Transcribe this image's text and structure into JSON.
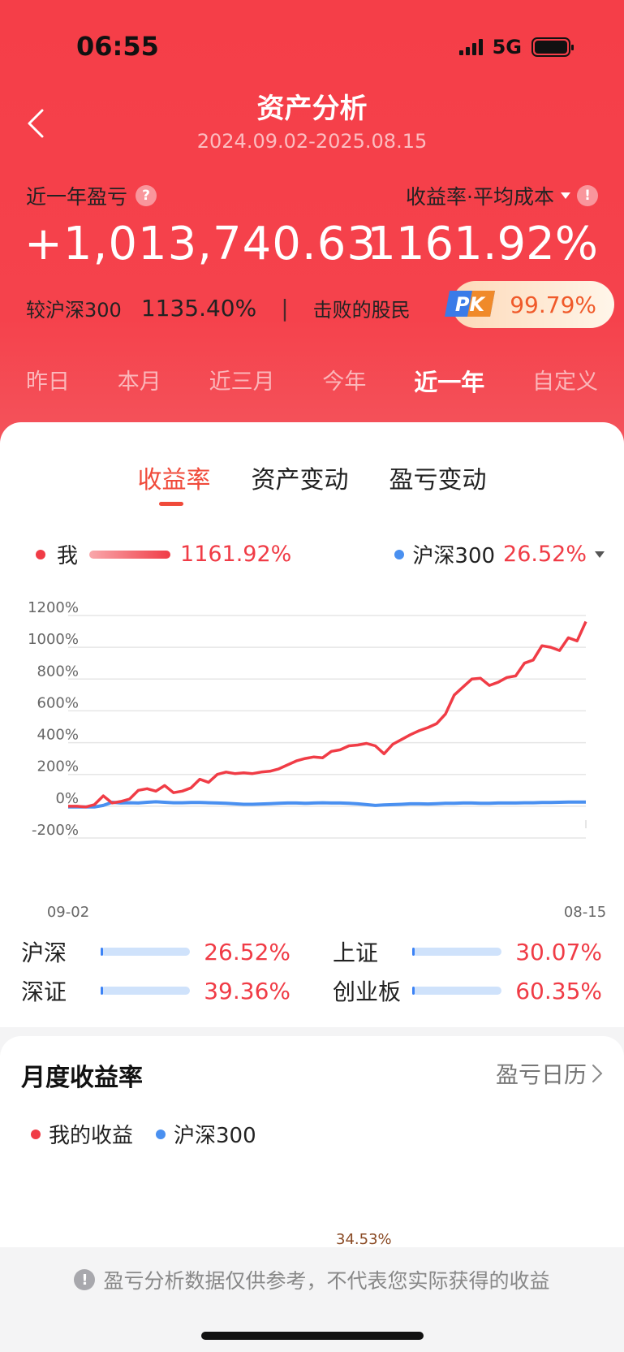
{
  "status": {
    "time": "06:55",
    "network": "5G"
  },
  "header": {
    "title": "资产分析",
    "date_range": "2024.09.02-2025.08.15",
    "pnl_label": "近一年盈亏",
    "help_symbol": "?",
    "rate_label": "收益率·平均成本",
    "warn_symbol": "!",
    "pnl_value": "+1,013,740.63",
    "rate_value": "1161.92%",
    "compare_label": "较沪深300",
    "compare_value": "1135.40%",
    "separator": "|",
    "beat_label": "击败的股民",
    "pk_badge_text": "PK",
    "beat_value": "99.79%"
  },
  "period_tabs": [
    "昨日",
    "本月",
    "近三月",
    "今年",
    "近一年",
    "自定义"
  ],
  "period_active": "近一年",
  "main_tabs": [
    "收益率",
    "资产变动",
    "盈亏变动"
  ],
  "main_tab_active": "收益率",
  "legend": {
    "me_label": "我",
    "me_value": "1161.92%",
    "index_label": "沪深300",
    "index_value": "26.52%"
  },
  "colors": {
    "me": "#f03c46",
    "index": "#4a90f0",
    "brand_red": "#f5424c"
  },
  "chart_data": {
    "type": "line",
    "x_start_label": "09-02",
    "x_end_label": "08-15",
    "y_ticks": [
      "1200%",
      "1000%",
      "800%",
      "600%",
      "400%",
      "200%",
      "0%",
      "-200%"
    ],
    "ylim": [
      -200,
      1200
    ],
    "grid": true,
    "series": [
      {
        "name": "我",
        "color": "#f03c46",
        "values": [
          0,
          0,
          -5,
          10,
          65,
          20,
          30,
          45,
          100,
          110,
          95,
          130,
          85,
          95,
          115,
          170,
          150,
          200,
          215,
          205,
          210,
          205,
          215,
          220,
          235,
          260,
          285,
          300,
          310,
          305,
          345,
          355,
          380,
          385,
          395,
          380,
          330,
          390,
          420,
          450,
          475,
          495,
          520,
          580,
          700,
          750,
          800,
          805,
          760,
          780,
          810,
          820,
          900,
          920,
          1010,
          1000,
          980,
          1060,
          1040,
          1161.92
        ]
      },
      {
        "name": "沪深300",
        "color": "#4a90f0",
        "values": [
          -5,
          -5,
          -5,
          -5,
          5,
          25,
          20,
          22,
          20,
          25,
          28,
          25,
          22,
          22,
          24,
          24,
          22,
          20,
          18,
          15,
          12,
          12,
          14,
          16,
          18,
          20,
          20,
          18,
          20,
          22,
          20,
          20,
          18,
          15,
          10,
          5,
          8,
          10,
          12,
          15,
          15,
          14,
          16,
          18,
          18,
          20,
          20,
          18,
          18,
          20,
          20,
          20,
          22,
          22,
          24,
          24,
          25,
          26,
          26,
          26.52
        ]
      }
    ]
  },
  "index_compare": [
    {
      "name": "沪深",
      "value": "26.52%"
    },
    {
      "name": "上证",
      "value": "30.07%"
    },
    {
      "name": "深证",
      "value": "39.36%"
    },
    {
      "name": "创业板",
      "value": "60.35%"
    }
  ],
  "monthly": {
    "title": "月度收益率",
    "link": "盈亏日历",
    "legend_me": "我的收益",
    "legend_index": "沪深300",
    "peak_label": "34.53%"
  },
  "disclaimer": {
    "icon_symbol": "!",
    "text": "盈亏分析数据仅供参考，不代表您实际获得的收益"
  }
}
